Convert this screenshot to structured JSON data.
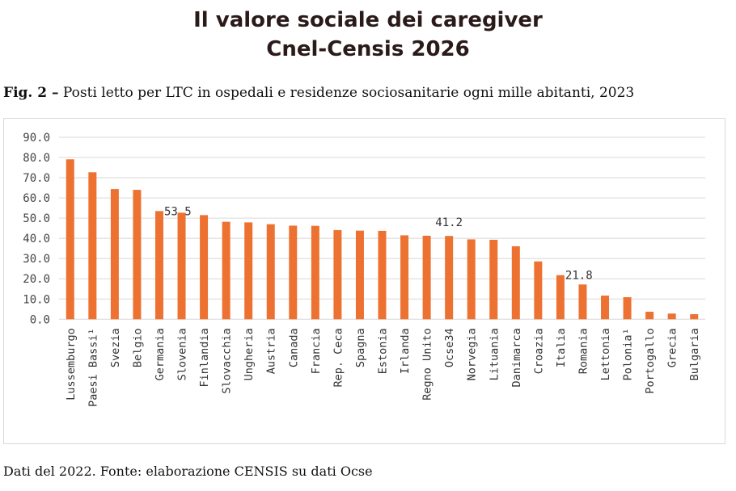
{
  "header": {
    "title_line1": "Il valore sociale dei caregiver",
    "title_line2": "Cnel-Censis 2026"
  },
  "figure": {
    "label": "Fig. 2 –",
    "caption": "Posti letto per LTC in ospedali e residenze sociosanitarie ogni mille abitanti, 2023"
  },
  "footer": {
    "source": "Dati del 2022. Fonte: elaborazione CENSIS su dati Ocse"
  },
  "chart_data": {
    "type": "bar",
    "categories": [
      "Lussemburgo",
      "Paesi Bassi¹",
      "Svezia",
      "Belgio",
      "Germania",
      "Slovenia",
      "Finlandia",
      "Slovacchia",
      "Ungheria",
      "Austria",
      "Canada",
      "Francia",
      "Rep. Ceca",
      "Spagna",
      "Estonia",
      "Irlanda",
      "Regno Unito",
      "Ocse34",
      "Norvegia",
      "Lituania",
      "Danimarca",
      "Croazia",
      "Italia",
      "Romania",
      "Lettonia",
      "Polonia¹",
      "Portogallo",
      "Grecia",
      "Bulgaria"
    ],
    "values": [
      79.1,
      72.7,
      64.4,
      64.0,
      53.5,
      52.7,
      51.5,
      48.2,
      47.9,
      47.0,
      46.3,
      46.2,
      44.1,
      43.8,
      43.7,
      41.5,
      41.3,
      41.2,
      39.5,
      39.3,
      36.1,
      28.6,
      21.8,
      17.2,
      11.7,
      10.9,
      3.7,
      2.8,
      2.5
    ],
    "data_labels": {
      "Germania": "53.5",
      "Ocse34": "41.2",
      "Italia": "21.8"
    },
    "yticks": [
      "0.0",
      "10.0",
      "20.0",
      "30.0",
      "40.0",
      "50.0",
      "60.0",
      "70.0",
      "80.0",
      "90.0"
    ],
    "ylim": [
      0,
      90
    ],
    "grid": true,
    "bar_color": "#ED7232"
  }
}
